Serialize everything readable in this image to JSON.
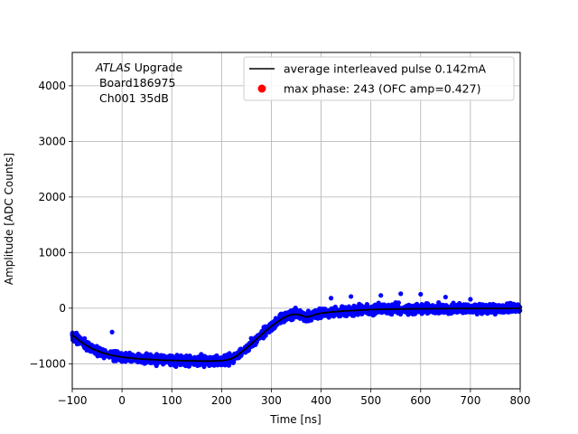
{
  "chart_data": {
    "type": "scatter",
    "title": "",
    "xlabel": "Time [ns]",
    "ylabel": "Amplitude [ADC Counts]",
    "xlim": [
      -100,
      800
    ],
    "ylim": [
      -1450,
      4600
    ],
    "xticks": [
      -100,
      0,
      100,
      200,
      300,
      400,
      500,
      600,
      700,
      800
    ],
    "yticks": [
      -1000,
      0,
      1000,
      2000,
      3000,
      4000
    ],
    "grid": true,
    "legend_position": "top-right",
    "annotation": {
      "line1_italic": "ATLAS",
      "line1_rest": " Upgrade",
      "line2": " Board186975",
      "line3": " Ch001 35dB"
    },
    "series": [
      {
        "name": "average interleaved pulse 0.142mA",
        "kind": "line",
        "color": "#000000",
        "x": [
          -100,
          -80,
          -60,
          -40,
          -20,
          0,
          20,
          40,
          60,
          80,
          100,
          120,
          140,
          160,
          180,
          200,
          210,
          220,
          230,
          240,
          250,
          260,
          270,
          280,
          290,
          300,
          310,
          320,
          330,
          340,
          350,
          360,
          370,
          380,
          390,
          400,
          420,
          440,
          460,
          480,
          500,
          550,
          600,
          650,
          700,
          750,
          800
        ],
        "y": [
          -480,
          -620,
          -730,
          -800,
          -850,
          -880,
          -900,
          -915,
          -925,
          -935,
          -940,
          -945,
          -948,
          -950,
          -950,
          -945,
          -935,
          -910,
          -860,
          -790,
          -720,
          -640,
          -560,
          -480,
          -400,
          -330,
          -260,
          -200,
          -150,
          -115,
          -110,
          -130,
          -160,
          -140,
          -110,
          -90,
          -70,
          -55,
          -45,
          -35,
          -25,
          -15,
          -10,
          -8,
          -6,
          -4,
          -3
        ]
      },
      {
        "name": "max phase: 243 (OFC amp=0.427)",
        "kind": "marker",
        "color": "#ff0000",
        "x": [],
        "y": []
      },
      {
        "name": "samples",
        "kind": "scatter",
        "color": "#0000ff",
        "spread": 75,
        "note": "dense blue sample points scattered around the average pulse"
      }
    ]
  }
}
